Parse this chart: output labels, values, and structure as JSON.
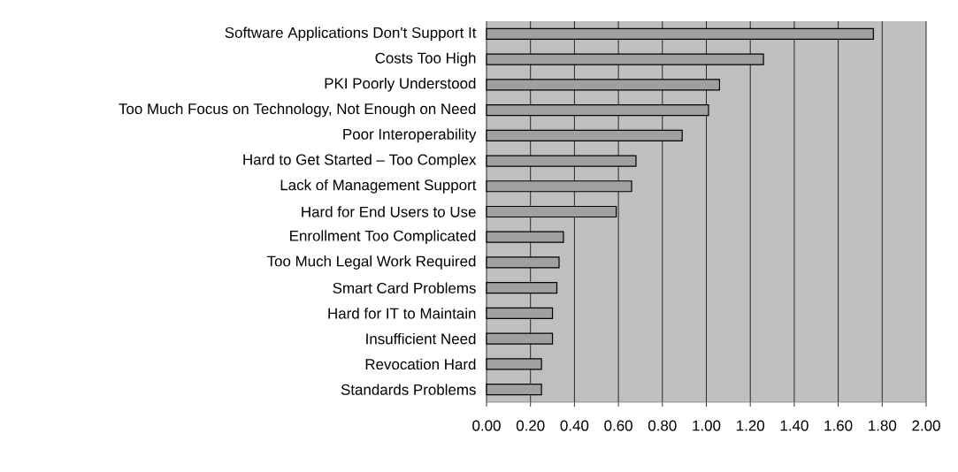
{
  "chart_data": {
    "type": "bar",
    "orientation": "horizontal",
    "categories": [
      "Software Applications Don't Support It",
      "Costs Too High",
      "PKI Poorly Understood",
      "Too Much Focus on Technology, Not Enough on Need",
      "Poor Interoperability",
      "Hard to Get Started – Too Complex",
      "Lack of Management Support",
      "Hard for End Users to Use",
      "Enrollment Too Complicated",
      "Too Much Legal Work Required",
      "Smart Card Problems",
      "Hard for IT to Maintain",
      "Insufficient Need",
      "Revocation Hard",
      "Standards Problems"
    ],
    "values": [
      1.76,
      1.26,
      1.06,
      1.01,
      0.89,
      0.68,
      0.66,
      0.59,
      0.35,
      0.33,
      0.32,
      0.3,
      0.3,
      0.25,
      0.25
    ],
    "color": "#a0a0a0",
    "xlim": [
      0,
      2
    ],
    "xticks": [
      {
        "value": 0,
        "label": "0.00"
      },
      {
        "value": 0.2,
        "label": "0.20"
      },
      {
        "value": 0.4,
        "label": "0.40"
      },
      {
        "value": 0.6,
        "label": "0.60"
      },
      {
        "value": 0.8,
        "label": "0.80"
      },
      {
        "value": 1.0,
        "label": "1.00"
      },
      {
        "value": 1.2,
        "label": "1.20"
      },
      {
        "value": 1.4,
        "label": "1.40"
      },
      {
        "value": 1.6,
        "label": "1.60"
      },
      {
        "value": 1.8,
        "label": "1.80"
      },
      {
        "value": 2.0,
        "label": "2.00"
      }
    ],
    "grid": "x"
  }
}
